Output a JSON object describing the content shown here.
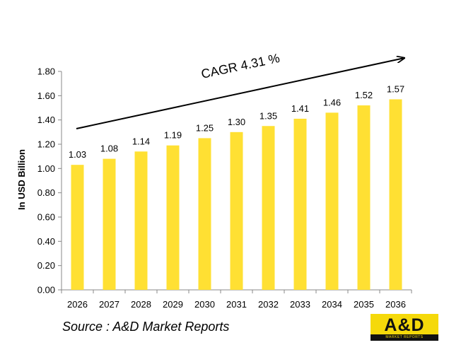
{
  "chart_data": {
    "type": "bar",
    "title": "",
    "xlabel": "",
    "ylabel": "In USD Billion",
    "ylim": [
      0,
      1.8
    ],
    "yticks": [
      "0.00",
      "0.20",
      "0.40",
      "0.60",
      "0.80",
      "1.00",
      "1.20",
      "1.40",
      "1.60",
      "1.80"
    ],
    "categories": [
      "2026",
      "2027",
      "2028",
      "2029",
      "2030",
      "2031",
      "2032",
      "2033",
      "2034",
      "2035",
      "2036"
    ],
    "values": [
      1.03,
      1.08,
      1.14,
      1.19,
      1.25,
      1.3,
      1.35,
      1.41,
      1.46,
      1.52,
      1.57
    ],
    "value_labels": [
      "1.03",
      "1.08",
      "1.14",
      "1.19",
      "1.25",
      "1.30",
      "1.35",
      "1.41",
      "1.46",
      "1.52",
      "1.57"
    ],
    "annotation": "CAGR 4.31 %",
    "grid": false,
    "bar_color": "#FFE033"
  },
  "source": "Source : A&D Market Reports",
  "logo": {
    "text": "A&D",
    "subtext": "MARKET REPORTS",
    "color": "#F5D90A"
  }
}
